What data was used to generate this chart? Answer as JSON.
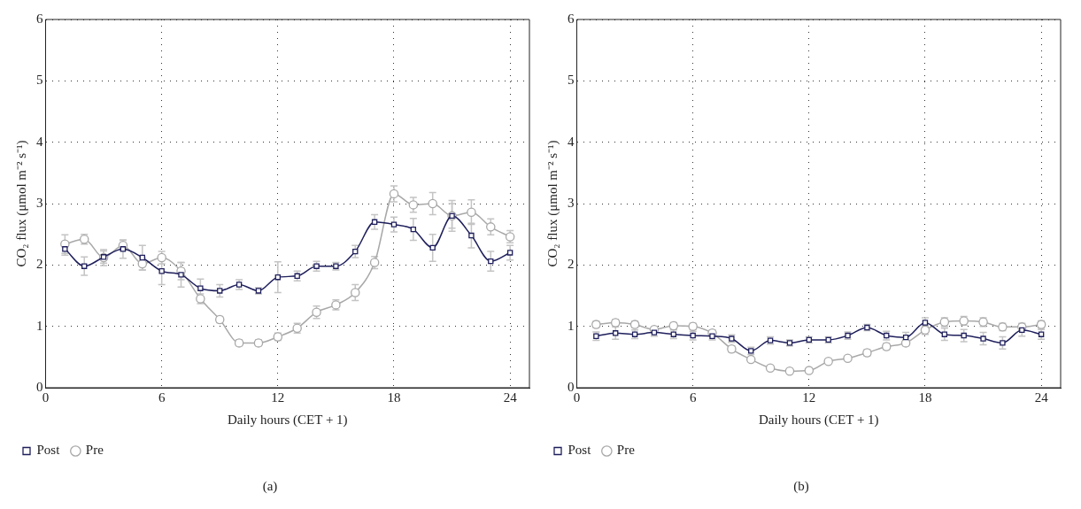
{
  "chart_data": [
    {
      "type": "line",
      "title": "(a)",
      "xlabel": "Daily hours (CET + 1)",
      "ylabel": "CO₂ flux (μmol m⁻² s⁻¹)",
      "x": [
        1,
        2,
        3,
        4,
        5,
        6,
        7,
        8,
        9,
        10,
        11,
        12,
        13,
        14,
        15,
        16,
        17,
        18,
        19,
        20,
        21,
        22,
        23,
        24
      ],
      "xlim": [
        0,
        25
      ],
      "xticks": [
        0,
        6,
        12,
        18,
        24
      ],
      "ylim": [
        0,
        6
      ],
      "yticks": [
        0,
        1,
        2,
        3,
        4,
        5,
        6
      ],
      "grid": true,
      "legend": "bottom left",
      "series": [
        {
          "name": "Post",
          "color": "#1f1f5c",
          "marker": "square",
          "values": [
            2.26,
            1.98,
            2.13,
            2.26,
            2.12,
            1.9,
            1.84,
            1.62,
            1.58,
            1.68,
            1.58,
            1.8,
            1.82,
            1.98,
            1.98,
            2.22,
            2.7,
            2.66,
            2.58,
            2.28,
            2.8,
            2.48,
            2.06,
            2.2
          ],
          "errors": [
            0.1,
            0.15,
            0.1,
            0.15,
            0.2,
            0.22,
            0.2,
            0.15,
            0.1,
            0.08,
            0.05,
            0.25,
            0.08,
            0.08,
            0.06,
            0.1,
            0.12,
            0.12,
            0.18,
            0.22,
            0.25,
            0.2,
            0.16,
            0.12
          ]
        },
        {
          "name": "Pre",
          "color": "#a8a8a8",
          "marker": "circle",
          "values": [
            2.34,
            2.42,
            2.12,
            2.32,
            2.02,
            2.12,
            1.9,
            1.45,
            1.11,
            0.73,
            0.73,
            0.83,
            0.97,
            1.23,
            1.35,
            1.55,
            2.04,
            3.16,
            2.98,
            3.0,
            2.8,
            2.86,
            2.62,
            2.46
          ],
          "errors": [
            0.15,
            0.08,
            0.13,
            0.08,
            0.1,
            0.1,
            0.14,
            0.08,
            0.05,
            0.05,
            0.05,
            0.06,
            0.08,
            0.1,
            0.08,
            0.13,
            0.1,
            0.13,
            0.12,
            0.18,
            0.2,
            0.2,
            0.13,
            0.1
          ]
        }
      ]
    },
    {
      "type": "line",
      "title": "(b)",
      "xlabel": "Daily hours (CET + 1)",
      "ylabel": "CO₂ flux (μmol m⁻² s⁻¹)",
      "x": [
        1,
        2,
        3,
        4,
        5,
        6,
        7,
        8,
        9,
        10,
        11,
        12,
        13,
        14,
        15,
        16,
        17,
        18,
        19,
        20,
        21,
        22,
        23,
        24
      ],
      "xlim": [
        0,
        25
      ],
      "xticks": [
        0,
        6,
        12,
        18,
        24
      ],
      "ylim": [
        0,
        6
      ],
      "yticks": [
        0,
        1,
        2,
        3,
        4,
        5,
        6
      ],
      "grid": true,
      "legend": "bottom left",
      "series": [
        {
          "name": "Post",
          "color": "#1f1f5c",
          "marker": "square",
          "values": [
            0.84,
            0.89,
            0.87,
            0.9,
            0.87,
            0.85,
            0.84,
            0.8,
            0.6,
            0.77,
            0.73,
            0.78,
            0.78,
            0.85,
            0.98,
            0.85,
            0.82,
            1.06,
            0.87,
            0.85,
            0.8,
            0.73,
            0.94,
            0.87
          ],
          "errors": [
            0.07,
            0.1,
            0.07,
            0.06,
            0.07,
            0.07,
            0.06,
            0.06,
            0.06,
            0.06,
            0.05,
            0.05,
            0.05,
            0.06,
            0.05,
            0.07,
            0.08,
            0.08,
            0.1,
            0.1,
            0.1,
            0.1,
            0.1,
            0.08
          ]
        },
        {
          "name": "Pre",
          "color": "#a8a8a8",
          "marker": "circle",
          "values": [
            1.03,
            1.06,
            1.03,
            0.95,
            1.01,
            1.0,
            0.89,
            0.63,
            0.46,
            0.32,
            0.27,
            0.28,
            0.43,
            0.48,
            0.57,
            0.67,
            0.73,
            0.94,
            1.07,
            1.09,
            1.07,
            0.99,
            0.99,
            1.03
          ],
          "errors": [
            0.05,
            0.05,
            0.05,
            null,
            0.05,
            0.05,
            0.05,
            0.05,
            null,
            null,
            null,
            null,
            null,
            null,
            0.05,
            0.05,
            0.05,
            0.07,
            0.07,
            0.07,
            0.07,
            0.06,
            0.06,
            0.06
          ]
        }
      ]
    }
  ]
}
